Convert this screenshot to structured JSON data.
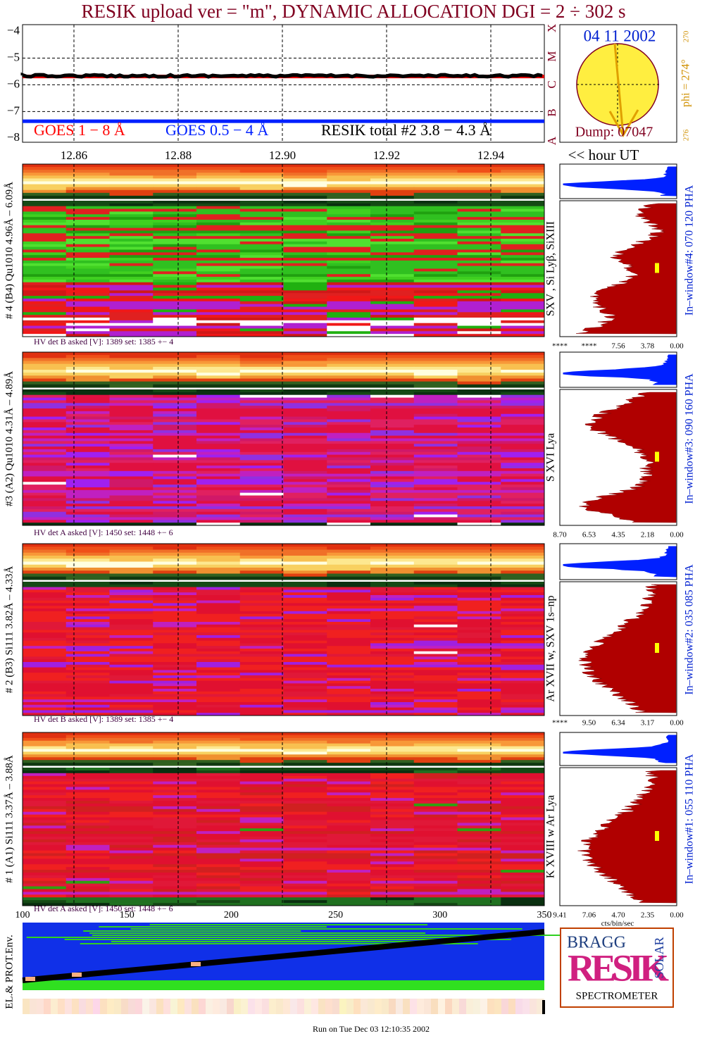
{
  "header": {
    "title": "RESIK upload ver = \"m\", DYNAMIC ALLOCATION  DGI =   2 ÷ 302 s"
  },
  "goes": {
    "ylim": [
      -3.75,
      -8.15
    ],
    "yticks": [
      {
        "value": -4,
        "label": "−4"
      },
      {
        "value": -5,
        "label": "−5"
      },
      {
        "value": -6,
        "label": "−6"
      },
      {
        "value": -7,
        "label": "−7"
      },
      {
        "value": -8,
        "label": "−8"
      }
    ],
    "class_labels": [
      "X",
      "M",
      "C",
      "B",
      "A"
    ],
    "long_level": -5.65,
    "short_level": -7.35,
    "legend": [
      "GOES 1 − 8 Å",
      "GOES 0.5 − 4 Å",
      "RESIK total #2  3.8 − 4.3 Å"
    ]
  },
  "sun": {
    "date": "04 11 2002",
    "dump": "Dump: 07047",
    "phi": "phi = 274°",
    "angle_top": "270",
    "angle_bottom": "276"
  },
  "time_axis": {
    "ticks": [
      "12.86",
      "12.88",
      "12.90",
      "12.92",
      "12.94"
    ],
    "unit": "<< hour UT"
  },
  "panels": [
    {
      "label": "# 4 (B4) Qu1010 4.96Å – 6.09Å",
      "lines": "SXV , Si Lyβ, SiXIII",
      "window": "In–window#4:  070 120 PHA",
      "hv": "HV det B asked [V]:  1389 set:  1385 +−   4",
      "hist_ticks": [
        "****",
        "****",
        "7.56",
        "3.78",
        "0.00"
      ]
    },
    {
      "label": "#3 (A2) Qu1010  4.31Å – 4.89Å",
      "lines": "S XVI Lya",
      "window": "In–window#3:  090 160 PHA",
      "hv": "HV det A asked [V]:  1450 set:  1448 +−   6",
      "hist_ticks": [
        "8.70",
        "6.53",
        "4.35",
        "2.18",
        "0.00"
      ]
    },
    {
      "label": "# 2 (B3) Si111  3.82Å – 4.33Å",
      "lines": "Ar XVII w,  SXV 1s–np",
      "window": "In–window#2:  035 085 PHA",
      "hv": "HV det B asked [V]:  1389 set:  1385 +−   4",
      "hist_ticks": [
        "****",
        "9.50",
        "6.34",
        "3.17",
        "0.00"
      ]
    },
    {
      "label": "# 1 (A1) Si111  3.37Å – 3.88Å",
      "lines": "K XVIII w  Ar Lya",
      "window": "In–window#1:  055 110 PHA",
      "hv": "HV det A asked [V]:  1450 set:  1448 +−   6",
      "hist_ticks": [
        "9.41",
        "7.06",
        "4.70",
        "2.35",
        "0.00"
      ]
    }
  ],
  "channel_axis": {
    "ticks": [
      "100",
      "150",
      "200",
      "250",
      "300",
      "350"
    ],
    "hist_unit": "cts/bin/sec"
  },
  "env": {
    "label": "EL.& PROT.Env."
  },
  "logo": {
    "top": "BRAGG",
    "middle": "RESIK",
    "side": "SOLAR",
    "bottom": "SPECTROMETER"
  },
  "footer": "Run on Tue Dec 03 12:10:35 2002"
}
